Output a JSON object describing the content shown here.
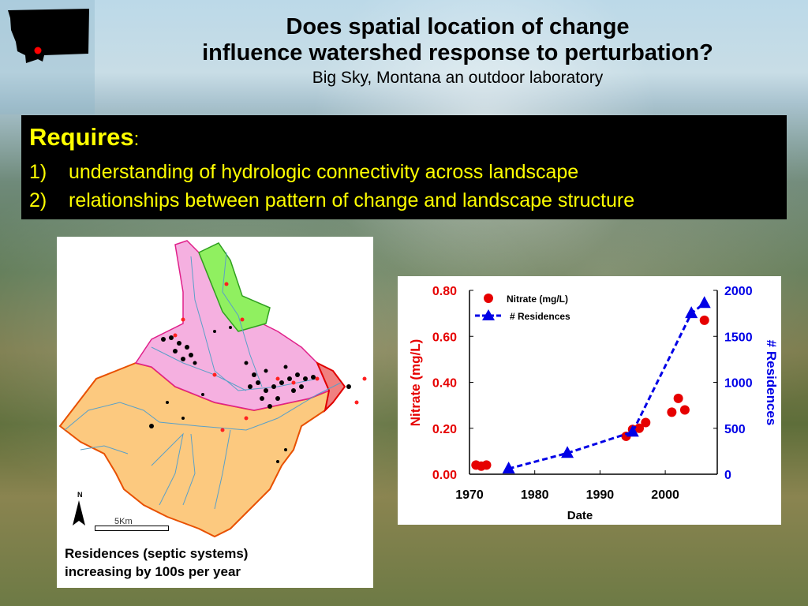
{
  "header": {
    "title_line1": "Does spatial location of change",
    "title_line2": "influence watershed response to perturbation?",
    "subtitle": "Big Sky, Montana an outdoor laboratory"
  },
  "requires": {
    "heading": "Requires",
    "colon": ":",
    "items": [
      {
        "num": "1)",
        "text": "understanding of hydrologic connectivity across landscape"
      },
      {
        "num": "2)",
        "text": "relationships between pattern of change and landscape structure"
      }
    ]
  },
  "map": {
    "north_label": "N",
    "scale_label": "5Km",
    "caption_line1": "Residences (septic systems)",
    "caption_line2": "increasing by 100s per year",
    "colors": {
      "pink": "#f5b0e0",
      "green": "#90f060",
      "orange": "#fcc97f",
      "outlet": "#f08080",
      "stream": "#5aa0c8"
    }
  },
  "chart_data": {
    "type": "scatter",
    "title": "",
    "xlabel": "Date",
    "ylabel": "Nitrate (mg/L)",
    "y2label": "# Residences",
    "xlim": [
      1970,
      2007
    ],
    "ylim": [
      0,
      0.8
    ],
    "y2lim": [
      0,
      2000
    ],
    "x_ticks": [
      "1970",
      "1980",
      "1990",
      "2000"
    ],
    "y_ticks": [
      "0.00",
      "0.20",
      "0.40",
      "0.60",
      "0.80"
    ],
    "y2_ticks": [
      "0",
      "500",
      "1000",
      "1500",
      "2000"
    ],
    "legend": [
      "Nitrate (mg/L)",
      "# Residences"
    ],
    "legend_position": "upper-left",
    "grid": false,
    "series": [
      {
        "name": "Nitrate (mg/L)",
        "axis": "left",
        "style": "red-circle",
        "x": [
          1971,
          1971.8,
          1972.6,
          1994,
          1995,
          1996,
          1997,
          2001,
          2002,
          2003,
          2006
        ],
        "values": [
          0.04,
          0.035,
          0.04,
          0.165,
          0.195,
          0.2,
          0.225,
          0.27,
          0.33,
          0.28,
          0.67
        ]
      },
      {
        "name": "# Residences",
        "axis": "right",
        "style": "blue-triangle-dashed",
        "x": [
          1976,
          1985,
          1995,
          2004,
          2006
        ],
        "values": [
          60,
          230,
          460,
          1750,
          1860
        ]
      }
    ],
    "colors": {
      "nitrate": "#e60000",
      "residences": "#0000e6"
    }
  }
}
